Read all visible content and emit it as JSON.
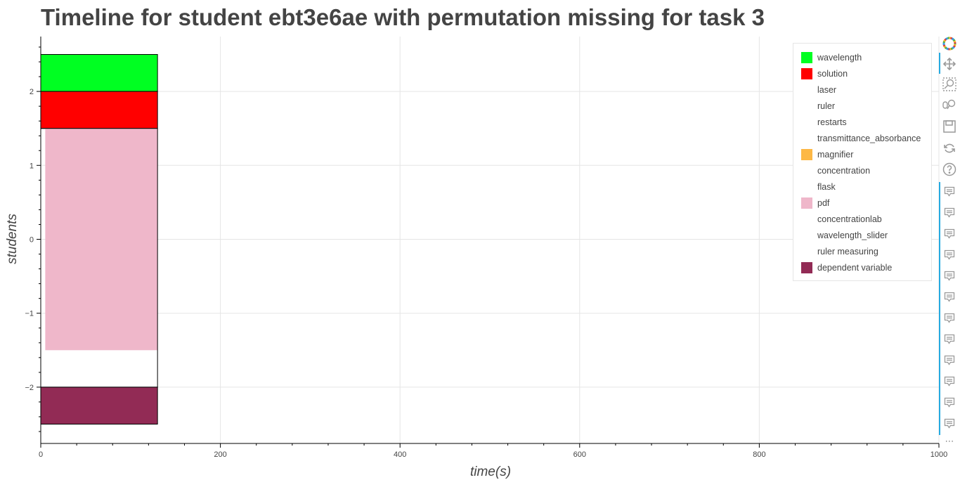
{
  "title": "Timeline for student ebt3e6ae with permutation missing for task 3",
  "chart_data": {
    "type": "bar",
    "orientation": "horizontal-stacked-timeline",
    "title": "Timeline for student ebt3e6ae with permutation missing for task 3",
    "xlabel": "time(s)",
    "ylabel": "students",
    "xlim": [
      0,
      1000
    ],
    "ylim": [
      -2.75,
      2.95
    ],
    "x_ticks": [
      0,
      200,
      400,
      600,
      800,
      1000
    ],
    "x_tick_labels": [
      "0",
      "200",
      "400",
      "600",
      "800",
      "1000"
    ],
    "y_ticks": [
      -2,
      -1,
      0,
      1,
      2
    ],
    "y_tick_labels": [
      "−2",
      "−1",
      "0",
      "1",
      "2"
    ],
    "grid": true,
    "legend_position": "top-right",
    "bars": [
      {
        "series": "wavelength",
        "x_start": 0,
        "x_end": 130,
        "y_bottom": 2.0,
        "y_top": 2.5,
        "color": "#00ff22",
        "outline": true
      },
      {
        "series": "solution",
        "x_start": 0,
        "x_end": 130,
        "y_bottom": 1.5,
        "y_top": 2.0,
        "color": "#ff0000",
        "outline": true
      },
      {
        "series": "pdf",
        "x_start": 5,
        "x_end": 130,
        "y_bottom": -1.5,
        "y_top": 1.5,
        "color": "#efb7ca",
        "outline": false
      },
      {
        "series": "(unfilled)",
        "x_start": 0,
        "x_end": 130,
        "y_bottom": -2.0,
        "y_top": 1.5,
        "color": "#ffffff",
        "outline": true
      },
      {
        "series": "dependent variable",
        "x_start": 0,
        "x_end": 130,
        "y_bottom": -2.5,
        "y_top": -2.0,
        "color": "#922b55",
        "outline": true
      }
    ],
    "legend": [
      {
        "name": "wavelength",
        "color": "#00ff22"
      },
      {
        "name": "solution",
        "color": "#ff0000"
      },
      {
        "name": "laser",
        "color": "#ffffff"
      },
      {
        "name": "ruler",
        "color": "#ffffff"
      },
      {
        "name": "restarts",
        "color": "#ffffff"
      },
      {
        "name": "transmittance_absorbance",
        "color": "#ffffff"
      },
      {
        "name": "magnifier",
        "color": "#fdb845"
      },
      {
        "name": "concentration",
        "color": "#ffffff"
      },
      {
        "name": "flask",
        "color": "#ffffff"
      },
      {
        "name": "pdf",
        "color": "#efb7ca"
      },
      {
        "name": "concentrationlab",
        "color": "#ffffff"
      },
      {
        "name": "wavelength_slider",
        "color": "#ffffff"
      },
      {
        "name": "ruler measuring",
        "color": "#ffffff"
      },
      {
        "name": "dependent variable",
        "color": "#922b55"
      }
    ]
  },
  "toolbar": {
    "tools": [
      {
        "name": "bokeh-logo-icon"
      },
      {
        "name": "pan-icon"
      },
      {
        "name": "box-zoom-icon"
      },
      {
        "name": "wheel-zoom-icon"
      },
      {
        "name": "save-icon"
      },
      {
        "name": "reset-icon"
      },
      {
        "name": "help-icon"
      },
      {
        "name": "hover-icon",
        "repeat": 12
      }
    ],
    "overflow_label": "⋯"
  }
}
